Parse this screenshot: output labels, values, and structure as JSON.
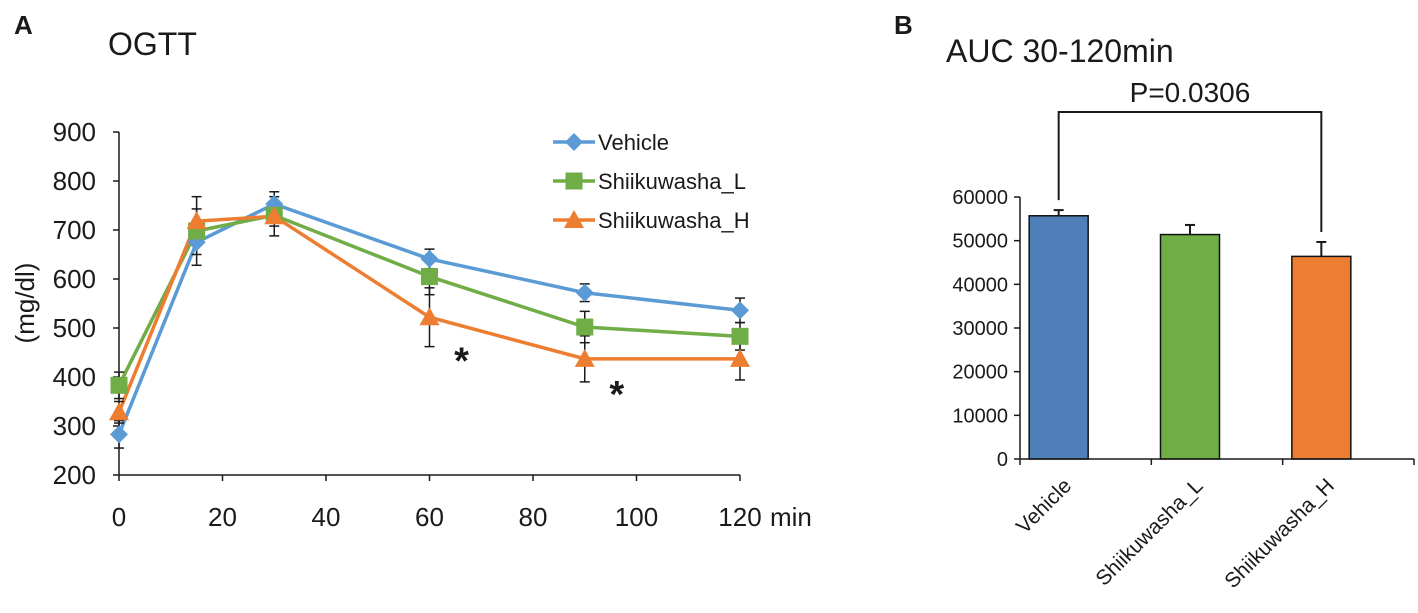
{
  "chart_data": [
    {
      "panel": "A",
      "type": "line",
      "title": "OGTT",
      "xlabel": "min",
      "ylabel": "(mg/dl)",
      "x": [
        0,
        15,
        30,
        60,
        90,
        120
      ],
      "xticks": [
        0,
        20,
        40,
        60,
        80,
        100,
        120
      ],
      "yticks": [
        200,
        300,
        400,
        500,
        600,
        700,
        800,
        900
      ],
      "xlim": [
        0,
        120
      ],
      "ylim": [
        200,
        900
      ],
      "legend_position": "top-right",
      "series": [
        {
          "name": "Vehicle",
          "marker": "diamond",
          "color": "#5b9bd5",
          "values": [
            283,
            675,
            753,
            641,
            572,
            536
          ],
          "errors": [
            28,
            25,
            25,
            20,
            18,
            25
          ]
        },
        {
          "name": "Shiikuwasha_L",
          "marker": "square",
          "color": "#70ad47",
          "values": [
            383,
            698,
            730,
            605,
            502,
            483
          ],
          "errors": [
            27,
            70,
            22,
            37,
            32,
            28
          ]
        },
        {
          "name": "Shiikuwasha_H",
          "marker": "triangle",
          "color": "#ed7d31",
          "values": [
            328,
            718,
            728,
            522,
            437,
            437
          ],
          "errors": [
            22,
            25,
            40,
            60,
            47,
            43
          ]
        }
      ],
      "annotations": [
        {
          "text": "*",
          "x": 60,
          "y": 460
        },
        {
          "text": "*",
          "x": 90,
          "y": 392
        }
      ]
    },
    {
      "panel": "B",
      "type": "bar",
      "title": "AUC 30-120min",
      "categories": [
        "Vehicle",
        "Shiikuwasha_L",
        "Shiikuwasha_H"
      ],
      "values": [
        55700,
        51400,
        46400
      ],
      "errors": [
        1300,
        2200,
        3300
      ],
      "colors": [
        "#4e7fb8",
        "#70ad47",
        "#ed7d31"
      ],
      "yticks": [
        0,
        10000,
        20000,
        30000,
        40000,
        50000,
        60000
      ],
      "ylim": [
        0,
        60000
      ],
      "significance": {
        "text": "P=0.0306",
        "from": "Vehicle",
        "to": "Shiikuwasha_H"
      }
    }
  ]
}
